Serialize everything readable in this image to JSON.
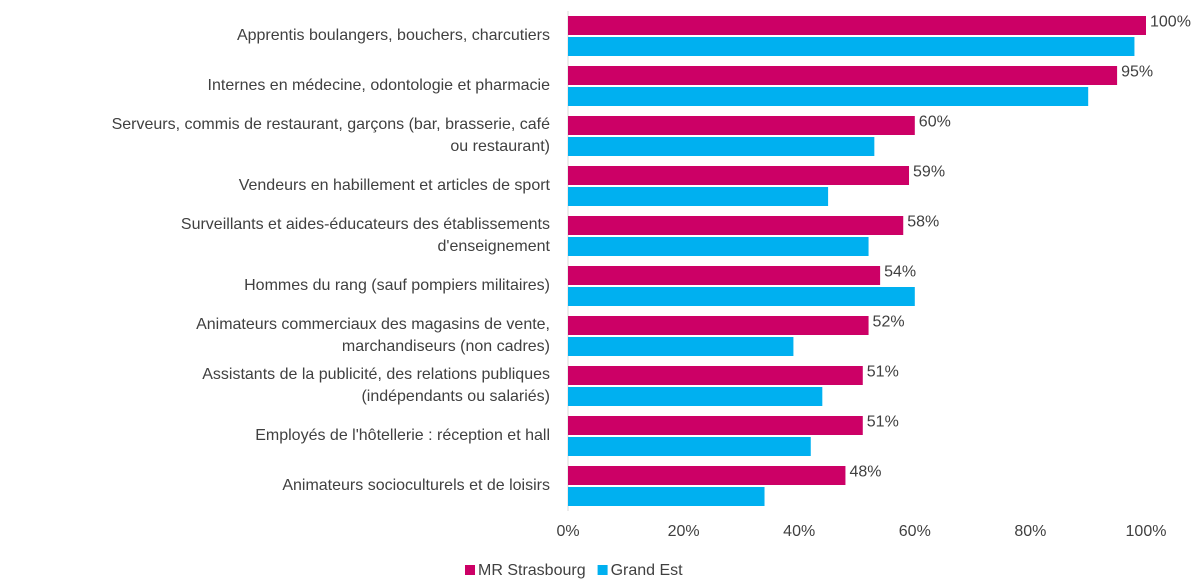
{
  "chart_data": {
    "type": "bar",
    "orientation": "horizontal",
    "categories": [
      "Apprentis boulangers, bouchers, charcutiers",
      "Internes en médecine, odontologie et pharmacie",
      "Serveurs, commis de restaurant, garçons (bar, brasserie, café\nou restaurant)",
      "Vendeurs en habillement et articles de sport",
      "Surveillants et aides-éducateurs des établissements\nd'enseignement",
      "Hommes du rang (sauf pompiers militaires)",
      "Animateurs commerciaux des magasins de vente,\nmarchandiseurs (non cadres)",
      "Assistants de la publicité, des relations publiques\n(indépendants ou salariés)",
      "Employés de l'hôtellerie : réception et hall",
      "Animateurs socioculturels et de loisirs"
    ],
    "series": [
      {
        "name": "MR Strasbourg",
        "color": "#cc0066",
        "values": [
          100,
          95,
          60,
          59,
          58,
          54,
          52,
          51,
          51,
          48
        ],
        "value_labels": [
          "100%",
          "95%",
          "60%",
          "59%",
          "58%",
          "54%",
          "52%",
          "51%",
          "51%",
          "48%"
        ]
      },
      {
        "name": "Grand Est",
        "color": "#00b0f0",
        "values": [
          98,
          90,
          53,
          45,
          52,
          60,
          39,
          44,
          42,
          34
        ]
      }
    ],
    "xlim": [
      0,
      100
    ],
    "xticks": [
      {
        "value": 0,
        "label": "0%"
      },
      {
        "value": 20,
        "label": "20%"
      },
      {
        "value": 40,
        "label": "40%"
      },
      {
        "value": 60,
        "label": "60%"
      },
      {
        "value": 80,
        "label": "80%"
      },
      {
        "value": 100,
        "label": "100%"
      }
    ],
    "legend": "bottom"
  }
}
